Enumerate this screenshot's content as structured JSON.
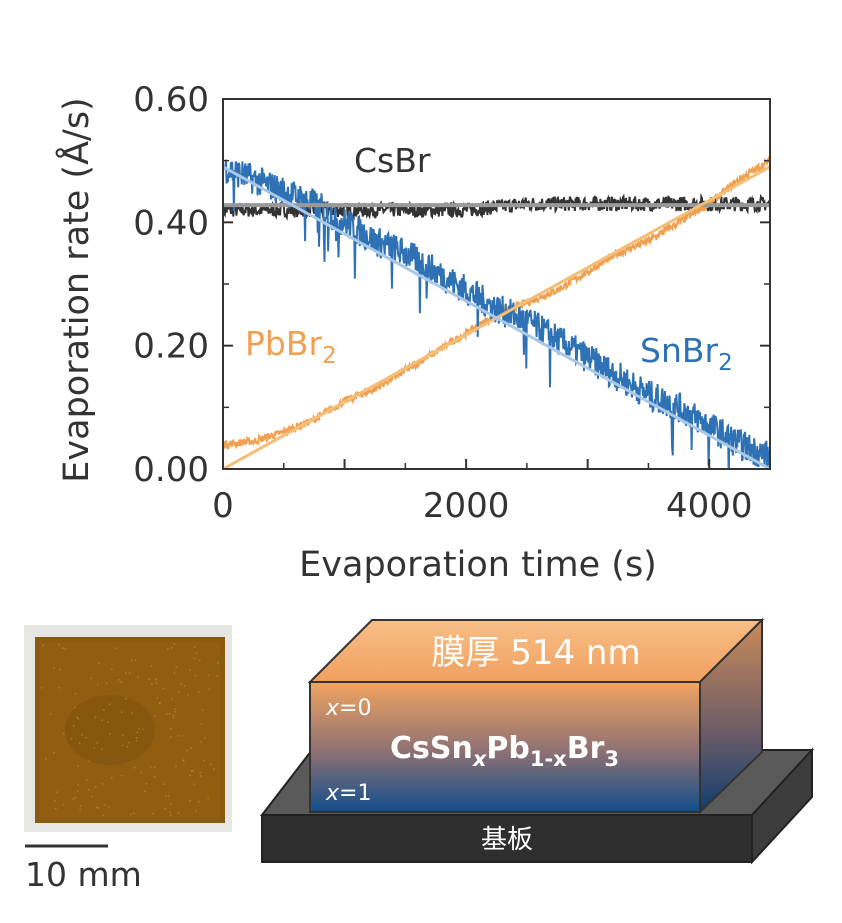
{
  "chart_data": {
    "type": "line",
    "xlabel": "Evaporation time (s)",
    "ylabel": "Evaporation rate (Å/s)",
    "xlim": [
      0,
      4500
    ],
    "ylim": [
      0,
      0.6
    ],
    "x_ticks": [
      {
        "value": 0,
        "label": "0"
      },
      {
        "value": 2000,
        "label": "2000"
      },
      {
        "value": 4000,
        "label": "4000"
      }
    ],
    "y_ticks": [
      {
        "value": 0,
        "label": "0.00"
      },
      {
        "value": 0.2,
        "label": "0.20"
      },
      {
        "value": 0.4,
        "label": "0.40"
      },
      {
        "value": 0.6,
        "label": "0.60"
      }
    ],
    "grid": false,
    "series": [
      {
        "name": "CsBr",
        "label_main": "CsBr",
        "label_sub": "",
        "color": "#333333",
        "fit_color": "#999999",
        "x": [
          0,
          500,
          1000,
          1500,
          2000,
          2500,
          3000,
          3500,
          4000,
          4500
        ],
        "y": [
          0.42,
          0.42,
          0.42,
          0.42,
          0.42,
          0.43,
          0.43,
          0.43,
          0.43,
          0.43
        ],
        "noise": 0.012,
        "fit": [
          [
            0,
            0.428
          ],
          [
            4500,
            0.428
          ]
        ]
      },
      {
        "name": "PbBr2",
        "label_main": "PbBr",
        "label_sub": "2",
        "color": "#f0a050",
        "fit_color": "#f5be77",
        "x": [
          0,
          250,
          500,
          750,
          1000,
          1250,
          1500,
          1750,
          2000,
          2250,
          2500,
          2750,
          3000,
          3250,
          3500,
          3750,
          4000,
          4250,
          4500
        ],
        "y": [
          0.04,
          0.045,
          0.06,
          0.08,
          0.11,
          0.13,
          0.16,
          0.19,
          0.22,
          0.25,
          0.27,
          0.29,
          0.32,
          0.35,
          0.37,
          0.4,
          0.43,
          0.47,
          0.5
        ],
        "noise": 0.006,
        "fit": [
          [
            0,
            0.0
          ],
          [
            4500,
            0.49
          ]
        ]
      },
      {
        "name": "SnBr2",
        "label_main": "SnBr",
        "label_sub": "2",
        "color": "#2e72b5",
        "fit_color": "#a9c8e8",
        "x": [
          0,
          250,
          500,
          750,
          1000,
          1250,
          1500,
          1750,
          2000,
          2250,
          2500,
          2750,
          3000,
          3250,
          3500,
          3750,
          4000,
          4250,
          4500
        ],
        "y": [
          0.49,
          0.47,
          0.45,
          0.43,
          0.4,
          0.37,
          0.35,
          0.32,
          0.29,
          0.26,
          0.24,
          0.21,
          0.18,
          0.15,
          0.12,
          0.1,
          0.07,
          0.04,
          0.02
        ],
        "noise": 0.025,
        "fit": [
          [
            0,
            0.49
          ],
          [
            4500,
            0.0
          ]
        ]
      }
    ]
  },
  "photo": {
    "scale_label": "10 mm"
  },
  "schematic": {
    "thickness_label": "膜厚 514 nm",
    "x0_var": "x",
    "x0_val": "=0",
    "x1_var": "x",
    "x1_val": "=1",
    "formula": {
      "cs": "CsSn",
      "sub_x1": "x",
      "pb": "Pb",
      "sub_1x": "1-x",
      "br": "Br",
      "sub_3": "3"
    },
    "substrate_label": "基板"
  }
}
